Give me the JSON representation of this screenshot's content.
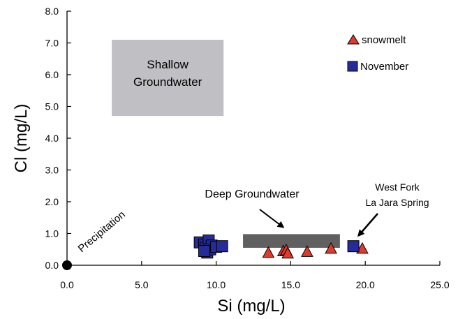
{
  "chart_data": {
    "type": "scatter",
    "xlabel": "Si (mg/L)",
    "ylabel": "Cl (mg/L)",
    "xlim": [
      0,
      25
    ],
    "ylim": [
      0,
      8
    ],
    "xticks": [
      "0.0",
      "5.0",
      "10.0",
      "15.0",
      "20.0",
      "25.0"
    ],
    "yticks": [
      "0.0",
      "1.0",
      "2.0",
      "3.0",
      "4.0",
      "5.0",
      "6.0",
      "7.0",
      "8.0"
    ],
    "grid": false,
    "legend_position": "top-right",
    "series": [
      {
        "name": "snowmelt",
        "marker": "triangle",
        "color": "#e03a2b",
        "points": [
          {
            "x": 13.5,
            "y": 0.4
          },
          {
            "x": 14.5,
            "y": 0.45
          },
          {
            "x": 14.7,
            "y": 0.48
          },
          {
            "x": 14.8,
            "y": 0.38
          },
          {
            "x": 16.1,
            "y": 0.43
          },
          {
            "x": 17.7,
            "y": 0.53
          },
          {
            "x": 19.8,
            "y": 0.53
          }
        ]
      },
      {
        "name": "November",
        "marker": "square",
        "color": "#262b9a",
        "points": [
          {
            "x": 8.9,
            "y": 0.72
          },
          {
            "x": 9.2,
            "y": 0.65
          },
          {
            "x": 9.3,
            "y": 0.55
          },
          {
            "x": 9.5,
            "y": 0.78
          },
          {
            "x": 9.4,
            "y": 0.4
          },
          {
            "x": 9.7,
            "y": 0.62
          },
          {
            "x": 9.6,
            "y": 0.5
          },
          {
            "x": 10.0,
            "y": 0.58
          },
          {
            "x": 10.4,
            "y": 0.6
          },
          {
            "x": 9.2,
            "y": 0.45
          },
          {
            "x": 19.2,
            "y": 0.6
          }
        ]
      },
      {
        "name": "",
        "marker": "circle",
        "color": "#000000",
        "points": [
          {
            "x": 0.0,
            "y": 0.0
          }
        ]
      }
    ],
    "regions": [
      {
        "label_lines": [
          "Shallow",
          "Groundwater"
        ],
        "x": [
          3.0,
          10.5
        ],
        "y": [
          4.7,
          7.1
        ],
        "color": "#c0c0c4"
      },
      {
        "label": "Deep Groundwater",
        "x": [
          11.8,
          18.3
        ],
        "y": [
          0.55,
          0.98
        ],
        "color": "#606060"
      }
    ],
    "annotations": [
      {
        "text": "Precipitation"
      },
      {
        "text_lines": [
          "West Fork",
          "La Jara Spring"
        ]
      }
    ]
  }
}
